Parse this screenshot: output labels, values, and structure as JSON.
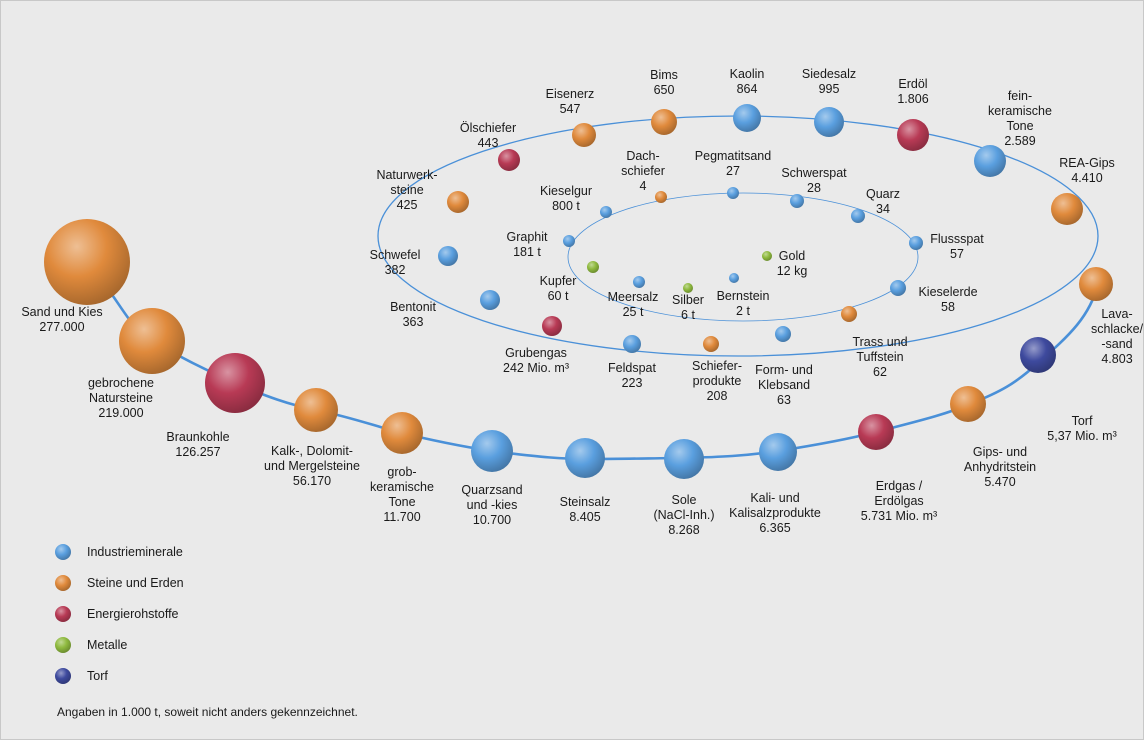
{
  "colors": {
    "Industrieminerale": "#5a9fdf",
    "Steine und Erden": "#e08a3c",
    "Energierohstoffe": "#b83a55",
    "Metalle": "#8fba3f",
    "Torf": "#3e4a9e",
    "path": "#4a90d8",
    "background": "#eaeaea"
  },
  "legend": [
    {
      "category": "Industrieminerale",
      "label": "Industrieminerale"
    },
    {
      "category": "Steine und Erden",
      "label": "Steine und Erden"
    },
    {
      "category": "Energierohstoffe",
      "label": "Energierohstoffe"
    },
    {
      "category": "Metalle",
      "label": "Metalle"
    },
    {
      "category": "Torf",
      "label": "Torf"
    }
  ],
  "footnote": "Angaben in 1.000 t, soweit nicht anders gekennzeichnet.",
  "items": [
    {
      "name": "Sand und Kies",
      "lines": [
        "Sand und Kies",
        "277.000"
      ],
      "category": "Steine und Erden"
    },
    {
      "name": "gebrochene Natursteine",
      "lines": [
        "gebrochene",
        "Natursteine",
        "219.000"
      ],
      "category": "Steine und Erden"
    },
    {
      "name": "Braunkohle",
      "lines": [
        "Braunkohle",
        "126.257"
      ],
      "category": "Energierohstoffe"
    },
    {
      "name": "Kalk-, Dolomit- und Mergelsteine",
      "lines": [
        "Kalk-, Dolomit-",
        "und Mergelsteine",
        "56.170"
      ],
      "category": "Steine und Erden"
    },
    {
      "name": "grobkeramische Tone",
      "lines": [
        "grob-",
        "keramische",
        "Tone",
        "11.700"
      ],
      "category": "Steine und Erden"
    },
    {
      "name": "Quarzsand und -kies",
      "lines": [
        "Quarzsand",
        "und -kies",
        "10.700"
      ],
      "category": "Industrieminerale"
    },
    {
      "name": "Steinsalz",
      "lines": [
        "Steinsalz",
        "8.405"
      ],
      "category": "Industrieminerale"
    },
    {
      "name": "Sole (NaCl-Inh.)",
      "lines": [
        "Sole",
        "(NaCl-Inh.)",
        "8.268"
      ],
      "category": "Industrieminerale"
    },
    {
      "name": "Kali- und Kalisalzprodukte",
      "lines": [
        "Kali- und",
        "Kalisalzprodukte",
        "6.365"
      ],
      "category": "Industrieminerale"
    },
    {
      "name": "Erdgas / Erdölgas",
      "lines": [
        "Erdgas /",
        "Erdölgas",
        "5.731 Mio. m³"
      ],
      "category": "Energierohstoffe"
    },
    {
      "name": "Gips- und Anhydritstein",
      "lines": [
        "Gips- und",
        "Anhydritstein",
        "5.470"
      ],
      "category": "Steine und Erden"
    },
    {
      "name": "Torf",
      "lines": [
        "Torf",
        "5,37 Mio. m³"
      ],
      "category": "Torf"
    },
    {
      "name": "Lavaschlacke/-sand",
      "lines": [
        "Lava-",
        "schlacke/",
        "-sand",
        "4.803"
      ],
      "category": "Steine und Erden"
    },
    {
      "name": "REA-Gips",
      "lines": [
        "REA-Gips",
        "4.410"
      ],
      "category": "Steine und Erden"
    },
    {
      "name": "feinkeramische Tone",
      "lines": [
        "fein-",
        "keramische",
        "Tone",
        "2.589"
      ],
      "category": "Industrieminerale"
    },
    {
      "name": "Erdöl",
      "lines": [
        "Erdöl",
        "1.806"
      ],
      "category": "Energierohstoffe"
    },
    {
      "name": "Siedesalz",
      "lines": [
        "Siedesalz",
        "995"
      ],
      "category": "Industrieminerale"
    },
    {
      "name": "Kaolin",
      "lines": [
        "Kaolin",
        "864"
      ],
      "category": "Industrieminerale"
    },
    {
      "name": "Bims",
      "lines": [
        "Bims",
        "650"
      ],
      "category": "Steine und Erden"
    },
    {
      "name": "Eisenerz",
      "lines": [
        "Eisenerz",
        "547"
      ],
      "category": "Steine und Erden"
    },
    {
      "name": "Ölschiefer",
      "lines": [
        "Ölschiefer",
        "443"
      ],
      "category": "Energierohstoffe"
    },
    {
      "name": "Naturwerksteine",
      "lines": [
        "Naturwerk-",
        "steine",
        "425"
      ],
      "category": "Steine und Erden"
    },
    {
      "name": "Schwefel",
      "lines": [
        "Schwefel",
        "382"
      ],
      "category": "Industrieminerale"
    },
    {
      "name": "Bentonit",
      "lines": [
        "Bentonit",
        "363"
      ],
      "category": "Industrieminerale"
    },
    {
      "name": "Grubengas",
      "lines": [
        "Grubengas",
        "242 Mio. m³"
      ],
      "category": "Energierohstoffe"
    },
    {
      "name": "Feldspat",
      "lines": [
        "Feldspat",
        "223"
      ],
      "category": "Industrieminerale"
    },
    {
      "name": "Schieferprodukte",
      "lines": [
        "Schiefer-",
        "produkte",
        "208"
      ],
      "category": "Steine und Erden"
    },
    {
      "name": "Form- und Klebsand",
      "lines": [
        "Form- und",
        "Klebsand",
        "63"
      ],
      "category": "Industrieminerale"
    },
    {
      "name": "Trass und Tuffstein",
      "lines": [
        "Trass und",
        "Tuffstein",
        "62"
      ],
      "category": "Steine und Erden"
    },
    {
      "name": "Kieselerde",
      "lines": [
        "Kieselerde",
        "58"
      ],
      "category": "Industrieminerale"
    },
    {
      "name": "Flussspat",
      "lines": [
        "Flussspat",
        "57"
      ],
      "category": "Industrieminerale"
    },
    {
      "name": "Quarz",
      "lines": [
        "Quarz",
        "34"
      ],
      "category": "Industrieminerale"
    },
    {
      "name": "Schwerspat",
      "lines": [
        "Schwerspat",
        "28"
      ],
      "category": "Industrieminerale"
    },
    {
      "name": "Pegmatitsand",
      "lines": [
        "Pegmatitsand",
        "27"
      ],
      "category": "Industrieminerale"
    },
    {
      "name": "Dachschiefer",
      "lines": [
        "Dach-",
        "schiefer",
        "4"
      ],
      "category": "Steine und Erden"
    },
    {
      "name": "Kieselgur",
      "lines": [
        "Kieselgur",
        "800 t"
      ],
      "category": "Industrieminerale"
    },
    {
      "name": "Graphit",
      "lines": [
        "Graphit",
        "181 t"
      ],
      "category": "Industrieminerale"
    },
    {
      "name": "Kupfer",
      "lines": [
        "Kupfer",
        "60 t"
      ],
      "category": "Metalle"
    },
    {
      "name": "Meersalz",
      "lines": [
        "Meersalz",
        "25 t"
      ],
      "category": "Industrieminerale"
    },
    {
      "name": "Silber",
      "lines": [
        "Silber",
        "6 t"
      ],
      "category": "Metalle"
    },
    {
      "name": "Bernstein",
      "lines": [
        "Bernstein",
        "2 t"
      ],
      "category": "Industrieminerale"
    },
    {
      "name": "Gold",
      "lines": [
        "Gold",
        "12 kg"
      ],
      "category": "Metalle"
    }
  ]
}
